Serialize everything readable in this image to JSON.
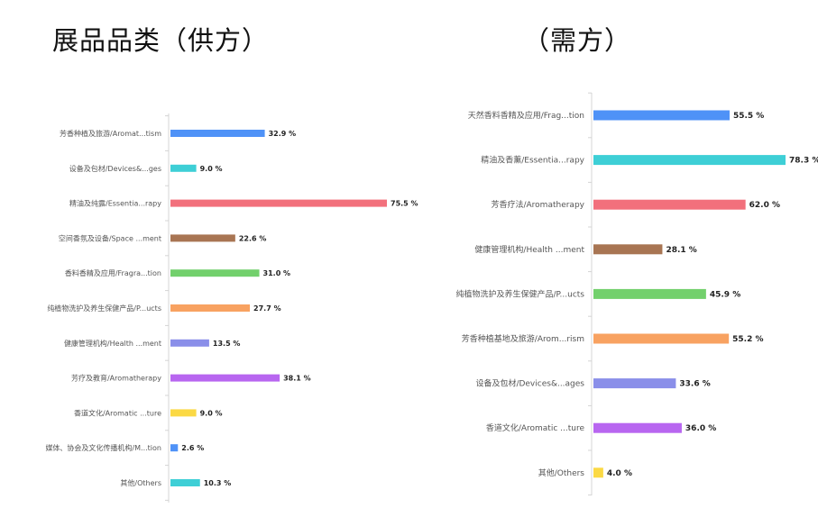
{
  "chart_data": [
    {
      "type": "bar",
      "orientation": "horizontal",
      "title": "展品品类（供方）",
      "categories": [
        "芳香种植及旅游/Aromat...tism",
        "设备及包材/Devices&...ges",
        "精油及纯露/Essentia...rapy",
        "空间香氛及设备/Space ...ment",
        "香料香精及应用/Fragra...tion",
        "纯植物洗护及养生保健产品/P...ucts",
        "健康管理机构/Health ...ment",
        "芳疗及教育/Aromatherapy",
        "香道文化/Aromatic ...ture",
        "媒体、协会及文化传播机构/M...tion",
        "其他/Others"
      ],
      "values": [
        32.9,
        9.0,
        75.5,
        22.6,
        31.0,
        27.7,
        13.5,
        38.1,
        9.0,
        2.6,
        10.3
      ],
      "value_labels": [
        "32.9 %",
        "9.0 %",
        "75.5 %",
        "22.6 %",
        "31.0 %",
        "27.7 %",
        "13.5 %",
        "38.1 %",
        "9.0 %",
        "2.6 %",
        "10.3 %"
      ],
      "colors": [
        "#4f92f7",
        "#3ecfd6",
        "#f2707c",
        "#a87553",
        "#72d06c",
        "#f8a261",
        "#8a8fe9",
        "#b866f0",
        "#fbd944",
        "#4f92f7",
        "#3ecfd6"
      ],
      "xlim": [
        0,
        80
      ],
      "grid": false
    },
    {
      "type": "bar",
      "orientation": "horizontal",
      "title": "（需方）",
      "categories": [
        "天然香料香精及应用/Frag...tion",
        "精油及香薰/Essentia...rapy",
        "芳香疗法/Aromatherapy",
        "健康管理机构/Health ...ment",
        "纯植物洗护及养生保健产品/P...ucts",
        "芳香种植基地及旅游/Arom...rism",
        "设备及包材/Devices&...ages",
        "香道文化/Aromatic ...ture",
        "其他/Others"
      ],
      "values": [
        55.5,
        78.3,
        62.0,
        28.1,
        45.9,
        55.2,
        33.6,
        36.0,
        4.0
      ],
      "value_labels": [
        "55.5 %",
        "78.3 %",
        "62.0 %",
        "28.1 %",
        "45.9 %",
        "55.2 %",
        "33.6 %",
        "36.0 %",
        "4.0 %"
      ],
      "colors": [
        "#4f92f7",
        "#3ecfd6",
        "#f2707c",
        "#a87553",
        "#72d06c",
        "#f8a261",
        "#8a8fe9",
        "#b866f0",
        "#fbd944"
      ],
      "xlim": [
        0,
        80
      ],
      "grid": false
    }
  ]
}
